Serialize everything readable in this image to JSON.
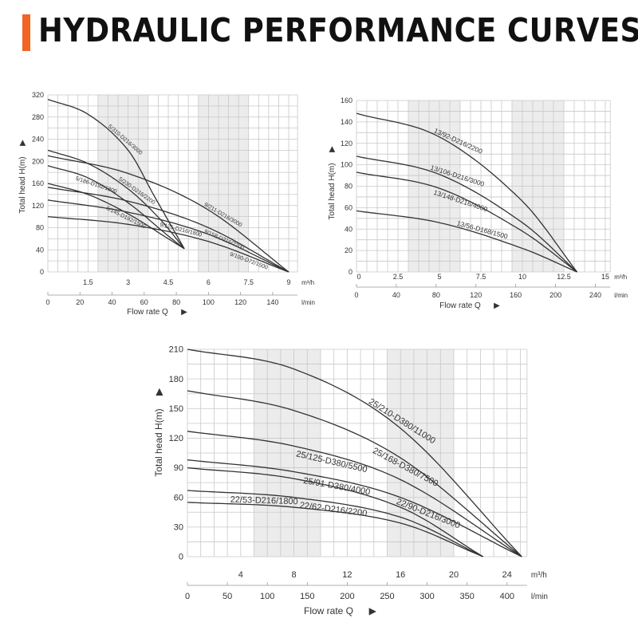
{
  "header": {
    "title": "HYDRAULIC PERFORMANCE CURVES",
    "accent_color": "#f26522"
  },
  "colors": {
    "curve": "#333333",
    "grid": "#c8c8c8",
    "shade": "#ececec"
  },
  "chart_data": [
    {
      "type": "line",
      "ylabel": "Total head H(m)",
      "xlabel": "Flow rate Q",
      "x_unit": "m³/h",
      "x2_unit": "l/min",
      "xlim": [
        0,
        9.33
      ],
      "ylim": [
        0,
        320
      ],
      "yticks": [
        0,
        40,
        80,
        120,
        160,
        200,
        240,
        280,
        320
      ],
      "xticks": [
        1.5,
        3,
        4.5,
        6,
        7.5,
        9
      ],
      "x2ticks": [
        0,
        20,
        40,
        60,
        80,
        100,
        120,
        140
      ],
      "grid": true,
      "series": [
        {
          "name": "5/310-D216/3000",
          "points": [
            [
              0,
              312
            ],
            [
              1.5,
              285
            ],
            [
              3,
              220
            ],
            [
              4,
              135
            ],
            [
              5.1,
              42
            ]
          ],
          "label_at": 2.2
        },
        {
          "name": "5/230-D216/2200",
          "points": [
            [
              0,
              220
            ],
            [
              1.5,
              196
            ],
            [
              3,
              150
            ],
            [
              4.2,
              95
            ],
            [
              5.1,
              42
            ]
          ],
          "label_at": 2.6
        },
        {
          "name": "5/186-D192/1800",
          "points": [
            [
              0,
              192
            ],
            [
              1.5,
              170
            ],
            [
              3,
              125
            ],
            [
              4.5,
              65
            ],
            [
              5.1,
              42
            ]
          ],
          "label_at": 1.3
        },
        {
          "name": "5/145-D192/1500",
          "points": [
            [
              0,
              160
            ],
            [
              1.5,
              140
            ],
            [
              3,
              105
            ],
            [
              4.5,
              60
            ],
            [
              5.1,
              42
            ]
          ],
          "label_at": 1.1
        },
        {
          "name": "9/211-D216/3000",
          "points": [
            [
              0,
              210
            ],
            [
              3,
              178
            ],
            [
              6,
              112
            ],
            [
              9,
              0
            ]
          ],
          "label_at": 5.8
        },
        {
          "name": "9/158-D216/2200",
          "points": [
            [
              0,
              153
            ],
            [
              3,
              128
            ],
            [
              6,
              80
            ],
            [
              9,
              0
            ]
          ],
          "label_at": 5.2
        },
        {
          "name": "9/125-D216/1800",
          "points": [
            [
              0,
              130
            ],
            [
              3,
              108
            ],
            [
              6,
              68
            ],
            [
              9,
              0
            ]
          ],
          "label_at": 5.4
        },
        {
          "name": "9/100-D72/1500",
          "points": [
            [
              0,
              100
            ],
            [
              3,
              86
            ],
            [
              6,
              55
            ],
            [
              9,
              0
            ]
          ],
          "label_at": 5.7
        }
      ]
    },
    {
      "type": "line",
      "ylabel": "Total head H(m)",
      "xlabel": "Flow rate Q",
      "x_unit": "m³/h",
      "x2_unit": "l/min",
      "xlim": [
        0,
        15.3
      ],
      "ylim": [
        0,
        160
      ],
      "yticks": [
        0,
        20,
        40,
        60,
        80,
        100,
        120,
        140,
        160
      ],
      "xticks": [
        0,
        2.5,
        5,
        7.5,
        10,
        12.5,
        15
      ],
      "x2ticks": [
        0,
        40,
        80,
        120,
        160,
        200,
        240
      ],
      "grid": true,
      "series": [
        {
          "name": "13/92-D216/2200",
          "points": [
            [
              0,
              148
            ],
            [
              5,
              126
            ],
            [
              10,
              66
            ],
            [
              13.3,
              0
            ]
          ],
          "label_at": 4.6
        },
        {
          "name": "13/106-D216/3000",
          "points": [
            [
              0,
              108
            ],
            [
              5,
              91
            ],
            [
              10,
              46
            ],
            [
              13.3,
              0
            ]
          ],
          "label_at": 4.4
        },
        {
          "name": "13/148-D216/4000",
          "points": [
            [
              0,
              93
            ],
            [
              5,
              78
            ],
            [
              10,
              38
            ],
            [
              13.3,
              0
            ]
          ],
          "label_at": 4.5
        },
        {
          "name": "13/56-D168/1500",
          "points": [
            [
              0,
              57
            ],
            [
              5,
              46
            ],
            [
              10,
              22
            ],
            [
              13.3,
              0
            ]
          ],
          "label_at": 6.0
        }
      ]
    },
    {
      "type": "line",
      "ylabel": "Total head H(m)",
      "xlabel": "Flow rate Q",
      "x_unit": "m³/h",
      "x2_unit": "l/min",
      "xlim": [
        0,
        25.5
      ],
      "ylim": [
        0,
        210
      ],
      "yticks": [
        0,
        30,
        60,
        90,
        120,
        150,
        180,
        210
      ],
      "xticks": [
        4,
        8,
        12,
        16,
        20,
        24
      ],
      "x2ticks": [
        0,
        50,
        100,
        150,
        200,
        250,
        300,
        350,
        400
      ],
      "grid": true,
      "series": [
        {
          "name": "25/210-D380/11000",
          "points": [
            [
              0,
              210
            ],
            [
              8,
              190
            ],
            [
              16,
              130
            ],
            [
              25.1,
              0
            ]
          ],
          "label_at": 13.5
        },
        {
          "name": "25/168-D380/7500",
          "points": [
            [
              0,
              168
            ],
            [
              8,
              148
            ],
            [
              16,
              100
            ],
            [
              25.1,
              0
            ]
          ],
          "label_at": 12.2
        },
        {
          "name": "25/125-D380/5500",
          "points": [
            [
              0,
              127
            ],
            [
              8,
              112
            ],
            [
              16,
              78
            ],
            [
              25.1,
              0
            ]
          ],
          "label_at": 11.3
        },
        {
          "name": "25/91-D380/4000",
          "points": [
            [
              0,
              98
            ],
            [
              8,
              86
            ],
            [
              16,
              60
            ],
            [
              25.1,
              0
            ]
          ],
          "label_at": 9.3
        },
        {
          "name": "22/90-D216/3000",
          "points": [
            [
              0,
              90
            ],
            [
              8,
              79
            ],
            [
              16,
              50
            ],
            [
              22.2,
              0
            ]
          ],
          "label_at": 15.6
        },
        {
          "name": "22/62-D216/2200",
          "points": [
            [
              0,
              67
            ],
            [
              8,
              60
            ],
            [
              16,
              40
            ],
            [
              22.2,
              0
            ]
          ],
          "label_at": 8.5
        },
        {
          "name": "22/53-D216/1800",
          "points": [
            [
              0,
              55
            ],
            [
              8,
              50
            ],
            [
              16,
              34
            ],
            [
              22.2,
              0
            ]
          ],
          "label_at": 7.2
        }
      ]
    }
  ]
}
